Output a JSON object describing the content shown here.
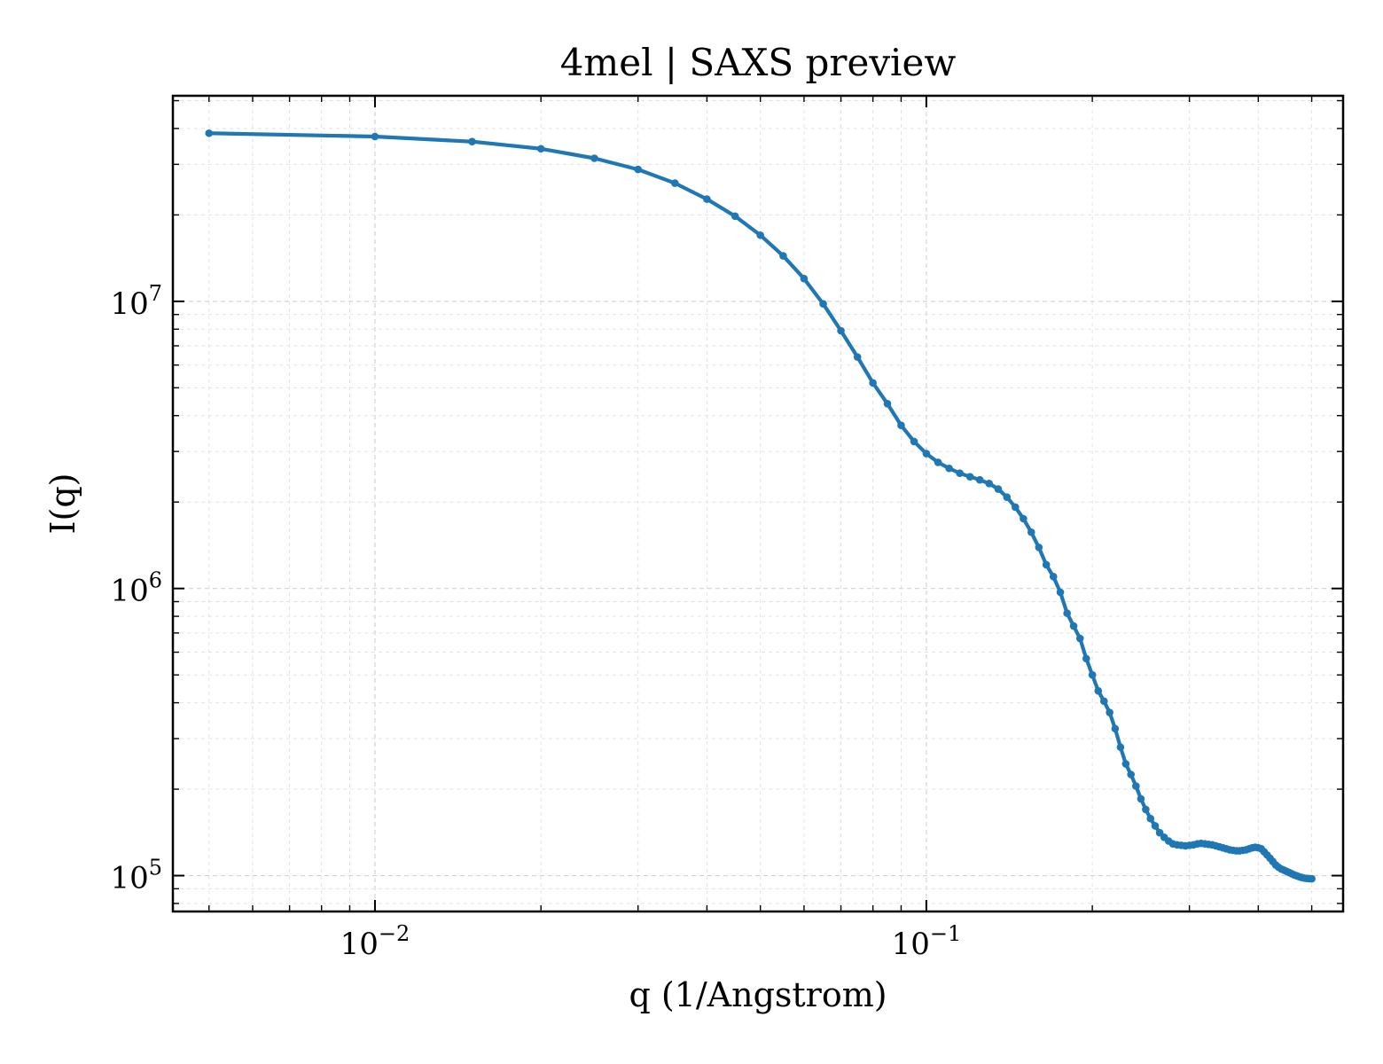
{
  "chart_data": {
    "type": "line",
    "title": "4mel | SAXS preview",
    "xlabel": "q (1/Angstrom)",
    "ylabel": "I(q)",
    "xscale": "log",
    "yscale": "log",
    "xlim": [
      0.0043,
      0.57
    ],
    "ylim": [
      75000,
      52000000
    ],
    "grid": true,
    "legend": "none",
    "xticks": [
      {
        "value": 0.01,
        "base": "10",
        "exp": "−2"
      },
      {
        "value": 0.1,
        "base": "10",
        "exp": "−1"
      }
    ],
    "yticks": [
      {
        "value": 100000,
        "base": "10",
        "exp": "5"
      },
      {
        "value": 1000000,
        "base": "10",
        "exp": "6"
      },
      {
        "value": 10000000,
        "base": "10",
        "exp": "7"
      }
    ],
    "series": [
      {
        "color": "#1f77b4",
        "marker": "circle",
        "x": [
          0.005,
          0.01,
          0.015,
          0.02,
          0.025,
          0.03,
          0.035,
          0.04,
          0.045,
          0.05,
          0.055,
          0.06,
          0.065,
          0.07,
          0.075,
          0.08,
          0.085,
          0.09,
          0.095,
          0.1,
          0.105,
          0.11,
          0.115,
          0.12,
          0.125,
          0.13,
          0.135,
          0.14,
          0.145,
          0.15,
          0.155,
          0.16,
          0.165,
          0.17,
          0.175,
          0.18,
          0.185,
          0.19,
          0.195,
          0.2,
          0.205,
          0.21,
          0.215,
          0.22,
          0.225,
          0.23,
          0.235,
          0.24,
          0.245,
          0.25,
          0.255,
          0.26,
          0.265,
          0.27,
          0.275,
          0.28,
          0.285,
          0.29,
          0.295,
          0.3,
          0.305,
          0.31,
          0.315,
          0.32,
          0.325,
          0.33,
          0.335,
          0.34,
          0.345,
          0.35,
          0.355,
          0.36,
          0.365,
          0.37,
          0.375,
          0.38,
          0.385,
          0.39,
          0.395,
          0.4,
          0.405,
          0.41,
          0.415,
          0.42,
          0.425,
          0.43,
          0.435,
          0.44,
          0.445,
          0.45,
          0.455,
          0.46,
          0.465,
          0.47,
          0.475,
          0.48,
          0.485,
          0.49,
          0.495,
          0.5
        ],
        "y": [
          38500000,
          37500000,
          36000000,
          34000000,
          31500000,
          28800000,
          25800000,
          22700000,
          19800000,
          17000000,
          14400000,
          12000000,
          9800000,
          7900000,
          6400000,
          5200000,
          4400000,
          3700000,
          3250000,
          2950000,
          2750000,
          2620000,
          2520000,
          2450000,
          2390000,
          2320000,
          2220000,
          2080000,
          1920000,
          1750000,
          1570000,
          1390000,
          1210000,
          1100000,
          970000,
          820000,
          740000,
          670000,
          570000,
          500000,
          440000,
          405000,
          370000,
          325000,
          280000,
          245000,
          225000,
          205000,
          185000,
          170000,
          158000,
          149000,
          141000,
          136000,
          132000,
          129000,
          128000,
          127500,
          127000,
          127500,
          128000,
          129000,
          129500,
          129000,
          128500,
          128000,
          127000,
          126000,
          125000,
          124000,
          123000,
          122500,
          122000,
          122000,
          122500,
          123000,
          124000,
          125000,
          125500,
          125000,
          124000,
          121000,
          118000,
          115000,
          112000,
          109000,
          107000,
          105500,
          104500,
          103500,
          102500,
          101500,
          100500,
          99800,
          99000,
          98500,
          98000,
          97800,
          97600,
          97500
        ]
      }
    ]
  }
}
